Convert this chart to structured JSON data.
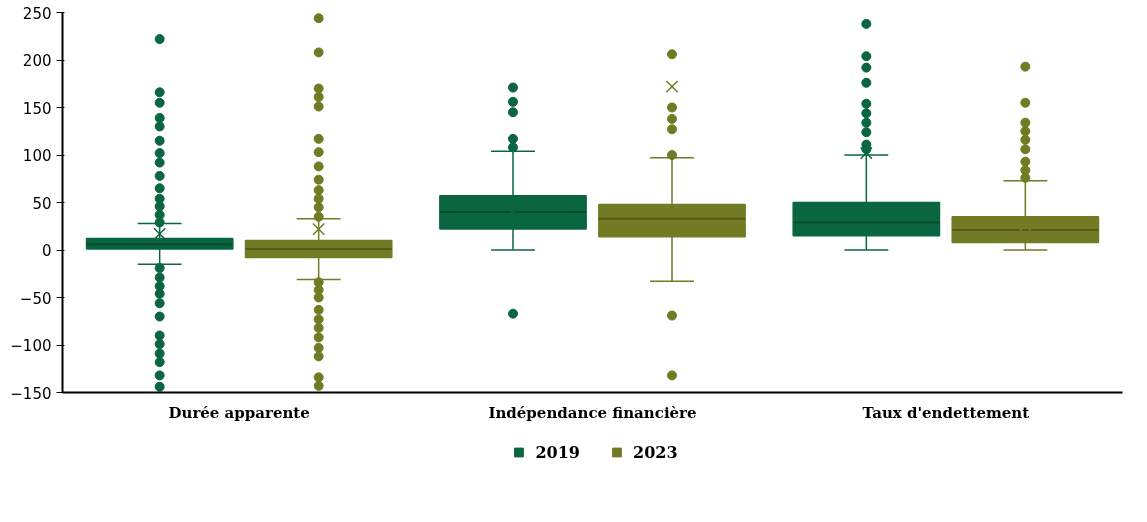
{
  "chart_data": {
    "type": "box",
    "categories": [
      "Durée apparente",
      "Indépendance financière",
      "Taux d'endettement"
    ],
    "ylim": [
      -150,
      250
    ],
    "yticks": [
      -150,
      -100,
      -50,
      0,
      50,
      100,
      150,
      200,
      250
    ],
    "grid": false,
    "legend": "bottom",
    "marker": "circle",
    "series": [
      {
        "name": "2019",
        "color": "#0a6640",
        "boxes": [
          {
            "low": -15,
            "q1": 1,
            "median": 6,
            "q3": 12,
            "high": 28,
            "mean": 17,
            "outliers": [
              222,
              166,
              155,
              139,
              130,
              115,
              102,
              92,
              78,
              65,
              54,
              46,
              37,
              29,
              -19,
              -29,
              -38,
              -46,
              -56,
              -70,
              -90,
              -99,
              -109,
              -118,
              -132,
              -144
            ]
          },
          {
            "low": 0,
            "q1": 22,
            "median": 40,
            "q3": 57,
            "high": 104,
            "mean": 41,
            "outliers": [
              171,
              156,
              145,
              117,
              108,
              -67
            ]
          },
          {
            "low": 0,
            "q1": 15,
            "median": 29,
            "q3": 50,
            "high": 100,
            "mean": 102,
            "outliers": [
              238,
              204,
              192,
              176,
              154,
              144,
              134,
              124,
              111,
              106
            ]
          }
        ]
      },
      {
        "name": "2023",
        "color": "#727b24",
        "boxes": [
          {
            "low": -31,
            "q1": -8,
            "median": 1,
            "q3": 10,
            "high": 33,
            "mean": 22,
            "outliers": [
              244,
              208,
              170,
              161,
              151,
              117,
              103,
              88,
              74,
              63,
              54,
              45,
              35,
              -34,
              -42,
              -50,
              -63,
              -73,
              -82,
              -92,
              -103,
              -112,
              -134,
              -143
            ]
          },
          {
            "low": -33,
            "q1": 14,
            "median": 33,
            "q3": 48,
            "high": 97,
            "mean": 172,
            "outliers": [
              206,
              150,
              138,
              127,
              100,
              -69,
              -132
            ]
          },
          {
            "low": 0,
            "q1": 8,
            "median": 21,
            "q3": 35,
            "high": 73,
            "mean": 26,
            "outliers": [
              193,
              155,
              134,
              125,
              116,
              106,
              93,
              84,
              76
            ]
          }
        ]
      }
    ]
  }
}
